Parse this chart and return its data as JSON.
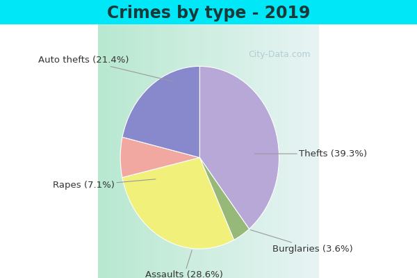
{
  "title": "Crimes by type - 2019",
  "slices": [
    {
      "label": "Thefts",
      "pct": 39.3,
      "color": "#b8a8d8"
    },
    {
      "label": "Burglaries",
      "pct": 3.6,
      "color": "#96b878"
    },
    {
      "label": "Assaults",
      "pct": 28.6,
      "color": "#f0f07a"
    },
    {
      "label": "Rapes",
      "pct": 7.1,
      "color": "#f0a8a0"
    },
    {
      "label": "Auto thefts",
      "pct": 21.4,
      "color": "#8888cc"
    }
  ],
  "background_top": "#00e8f8",
  "background_main_left": "#b8e8d0",
  "background_main_right": "#e8f4f4",
  "watermark": "City-Data.com",
  "title_fontsize": 17,
  "label_fontsize": 9.5,
  "title_color": "#1a3a3a",
  "label_color": "#333333",
  "arrow_color": "#999999"
}
